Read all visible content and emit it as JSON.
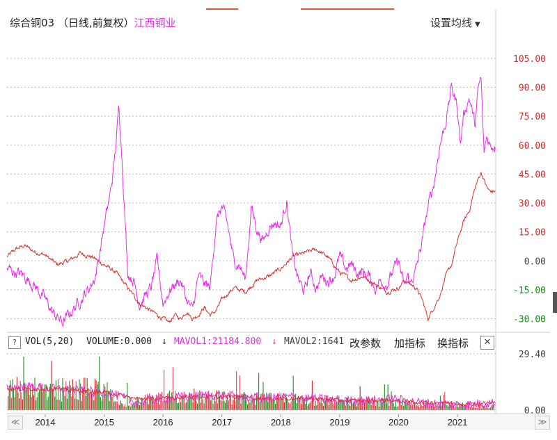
{
  "header": {
    "title": "综合铜03 （日线,前复权）",
    "stock_name": "江西铜业",
    "settings_label": "设置均线"
  },
  "volume_panel": {
    "help_label": "?",
    "vol_label": "VOL(5,20)",
    "volume_text": "VOLUME:0.000",
    "mavol1_text": "MAVOL1:21184.800",
    "mavol2_text": "MAVOL2:1641",
    "arrow_down": "↓",
    "change_params_label": "改参数",
    "add_indicator_label": "加指标",
    "switch_indicator_label": "换指标",
    "close_label": "✕"
  },
  "navigation": {
    "prev_label": "≪",
    "next_label": "≫"
  },
  "colors": {
    "magenta": "#e52ee5",
    "red": "#d8312a",
    "green": "#2e9a2e",
    "pink_bar": "#ee4d6a",
    "axis_text": "#444444",
    "grid": "#bbbbbb"
  },
  "chart_data": [
    {
      "type": "line",
      "title": "",
      "x_range": [
        2013.35,
        2021.65
      ],
      "ylim": [
        -37,
        110
      ],
      "y_ticks": [
        105,
        90,
        75,
        60,
        45,
        30,
        15,
        0,
        -15,
        -30
      ],
      "y_tick_labels": [
        "105.00",
        "90.00",
        "75.00",
        "60.00",
        "45.00",
        "30.00",
        "15.00",
        "0.00",
        "-15.00",
        "-30.00"
      ],
      "grid": true,
      "series": [
        {
          "name": "综合铜03",
          "color": "#d8312a",
          "x": [
            2013.35,
            2013.5,
            2013.65,
            2013.8,
            2014.0,
            2014.2,
            2014.4,
            2014.6,
            2014.8,
            2015.0,
            2015.1,
            2015.2,
            2015.3,
            2015.4,
            2015.5,
            2015.6,
            2015.7,
            2015.8,
            2015.9,
            2016.0,
            2016.1,
            2016.2,
            2016.3,
            2016.4,
            2016.5,
            2016.6,
            2016.7,
            2016.8,
            2016.9,
            2017.0,
            2017.2,
            2017.4,
            2017.6,
            2017.8,
            2018.0,
            2018.2,
            2018.4,
            2018.6,
            2018.8,
            2019.0,
            2019.2,
            2019.4,
            2019.6,
            2019.8,
            2020.0,
            2020.1,
            2020.2,
            2020.3,
            2020.4,
            2020.5,
            2020.6,
            2020.7,
            2020.8,
            2020.9,
            2021.0,
            2021.1,
            2021.2,
            2021.3,
            2021.4,
            2021.5,
            2021.55
          ],
          "values": [
            2,
            6,
            8,
            5,
            3,
            -2,
            0,
            4,
            2,
            -2,
            -4,
            -6,
            -10,
            -14,
            -18,
            -22,
            -24,
            -26,
            -28,
            -30,
            -32,
            -28,
            -30,
            -26,
            -30,
            -28,
            -24,
            -28,
            -26,
            -20,
            -14,
            -16,
            -10,
            -8,
            -4,
            2,
            4,
            6,
            2,
            -6,
            -10,
            -8,
            -12,
            -16,
            -14,
            -10,
            -12,
            -14,
            -20,
            -30,
            -24,
            -18,
            -8,
            -2,
            10,
            20,
            26,
            38,
            46,
            38,
            36
          ]
        },
        {
          "name": "江西铜业",
          "color": "#e52ee5",
          "x": [
            2013.35,
            2013.5,
            2013.65,
            2013.8,
            2014.0,
            2014.15,
            2014.3,
            2014.45,
            2014.6,
            2014.75,
            2014.85,
            2014.9,
            2015.0,
            2015.1,
            2015.15,
            2015.2,
            2015.25,
            2015.3,
            2015.4,
            2015.5,
            2015.6,
            2015.7,
            2015.8,
            2015.9,
            2016.0,
            2016.1,
            2016.2,
            2016.3,
            2016.4,
            2016.5,
            2016.6,
            2016.7,
            2016.8,
            2016.9,
            2017.0,
            2017.1,
            2017.2,
            2017.3,
            2017.4,
            2017.5,
            2017.6,
            2017.7,
            2017.8,
            2017.9,
            2018.0,
            2018.1,
            2018.2,
            2018.3,
            2018.4,
            2018.5,
            2018.6,
            2018.7,
            2018.8,
            2018.9,
            2019.0,
            2019.1,
            2019.2,
            2019.3,
            2019.4,
            2019.5,
            2019.6,
            2019.7,
            2019.8,
            2019.9,
            2020.0,
            2020.1,
            2020.15,
            2020.2,
            2020.3,
            2020.4,
            2020.5,
            2020.6,
            2020.7,
            2020.8,
            2020.9,
            2021.0,
            2021.05,
            2021.1,
            2021.2,
            2021.3,
            2021.35,
            2021.4,
            2021.45,
            2021.5,
            2021.55
          ],
          "values": [
            -4,
            -6,
            -8,
            -12,
            -20,
            -28,
            -32,
            -26,
            -20,
            -14,
            -8,
            0,
            18,
            34,
            45,
            60,
            80,
            56,
            -6,
            -10,
            -22,
            -18,
            -14,
            0,
            -22,
            -16,
            -12,
            -10,
            -20,
            -26,
            -8,
            -12,
            -14,
            20,
            28,
            18,
            0,
            -2,
            -10,
            28,
            16,
            10,
            18,
            20,
            18,
            32,
            2,
            -10,
            -16,
            -6,
            -14,
            -8,
            -10,
            -8,
            2,
            -4,
            -2,
            -6,
            -6,
            -8,
            -14,
            -10,
            -12,
            -6,
            0,
            -14,
            -8,
            -12,
            -4,
            10,
            28,
            40,
            60,
            72,
            90,
            80,
            60,
            75,
            85,
            70,
            88,
            95,
            55,
            65,
            60
          ]
        }
      ]
    },
    {
      "type": "bar",
      "title": "VOL(5,20)",
      "ylim": [
        0,
        29.4
      ],
      "y_ticks": [
        29.4,
        0
      ],
      "y_tick_labels": [
        "29.40",
        "0.00"
      ],
      "x_tick_labels": [
        "2014",
        "2015",
        "2016",
        "2017",
        "2018",
        "2019",
        "2020",
        "2021"
      ],
      "x_tick_years": [
        2014,
        2015,
        2016,
        2017,
        2018,
        2019,
        2020,
        2021
      ],
      "series": [
        {
          "name": "MAVOL1",
          "color": "#e52ee5",
          "values": [
            12,
            12,
            11,
            10,
            9,
            4,
            6,
            7,
            8,
            7,
            6,
            7,
            6,
            5,
            5,
            6,
            4,
            3,
            3,
            4
          ]
        },
        {
          "name": "MAVOL2",
          "color": "#d8312a",
          "values": [
            11,
            11,
            11,
            10,
            9,
            6,
            6,
            7,
            7,
            7,
            6,
            6,
            6,
            5,
            5,
            5,
            4,
            4,
            3,
            4
          ]
        }
      ],
      "volume_profile": [
        {
          "x": 2013.35,
          "v": 12
        },
        {
          "x": 2014.0,
          "v": 11
        },
        {
          "x": 2015.0,
          "v": 12
        },
        {
          "x": 2015.2,
          "v": 3
        },
        {
          "x": 2015.5,
          "v": 5
        },
        {
          "x": 2016.5,
          "v": 8
        },
        {
          "x": 2017.0,
          "v": 7
        },
        {
          "x": 2018.0,
          "v": 6
        },
        {
          "x": 2019.0,
          "v": 5
        },
        {
          "x": 2020.0,
          "v": 4
        },
        {
          "x": 2021.0,
          "v": 3
        },
        {
          "x": 2021.55,
          "v": 2
        }
      ]
    }
  ]
}
